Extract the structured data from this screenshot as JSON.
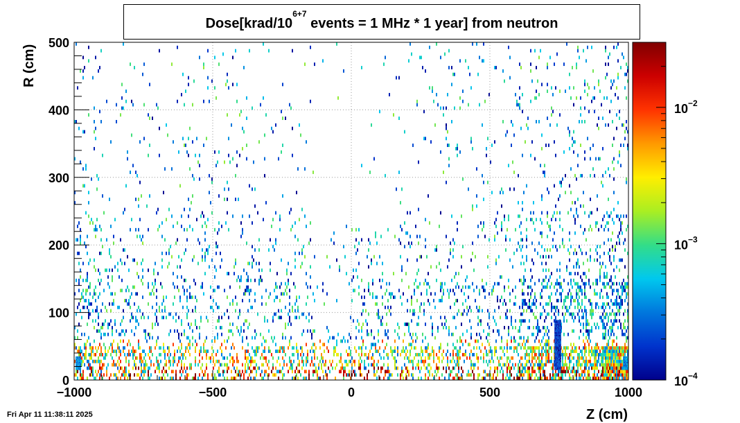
{
  "chart_data": {
    "type": "heatmap",
    "title_main": "Dose[krad/10",
    "title_sup": "6+7",
    "title_rest": " events = 1 MHz * 1 year] from neutron",
    "xlabel": "Z (cm)",
    "ylabel": "R (cm)",
    "xlim": [
      -1000,
      1000
    ],
    "ylim": [
      0,
      500
    ],
    "x_ticks": [
      -1000,
      -500,
      0,
      500,
      1000
    ],
    "x_tick_labels": [
      "−1000",
      "−500",
      "0",
      "500",
      "1000"
    ],
    "y_ticks": [
      0,
      100,
      200,
      300,
      400,
      500
    ],
    "y_tick_labels": [
      "0",
      "100",
      "200",
      "300",
      "400",
      "500"
    ],
    "grid": true,
    "colorbar": {
      "scale": "log",
      "range": [
        0.0001,
        0.03
      ],
      "tick_values": [
        0.0001,
        0.001,
        0.01
      ],
      "tick_labels": [
        {
          "base": "10",
          "exp": "−4"
        },
        {
          "base": "10",
          "exp": "−3"
        },
        {
          "base": "10",
          "exp": "−2"
        }
      ],
      "colors": [
        "#00008b",
        "#0033cc",
        "#0077dd",
        "#00c8ee",
        "#33dd88",
        "#aaee22",
        "#ffee00",
        "#ff9900",
        "#ff3300",
        "#cc0000",
        "#800000"
      ]
    },
    "hotspots": [
      {
        "z": 745,
        "r_min": 15,
        "r_max": 88,
        "z_half_width": 12,
        "dose": 0.0001
      },
      {
        "z": 990,
        "r_min": 15,
        "r_max": 35,
        "z_half_width": 10,
        "dose": 0.0002
      },
      {
        "z": -985,
        "r_min": 15,
        "r_max": 35,
        "z_half_width": 10,
        "dose": 0.0002
      }
    ],
    "density_profile": {
      "description_r_bands": [
        [
          0,
          50
        ],
        [
          50,
          150
        ],
        [
          150,
          300
        ],
        [
          300,
          500
        ]
      ],
      "low_r_typical_dose": 0.003,
      "mid_r_typical_dose": 0.0008,
      "high_r_typical_dose": 0.0003
    }
  },
  "footer": {
    "timestamp": "Fri Apr 11 11:38:11 2025"
  }
}
